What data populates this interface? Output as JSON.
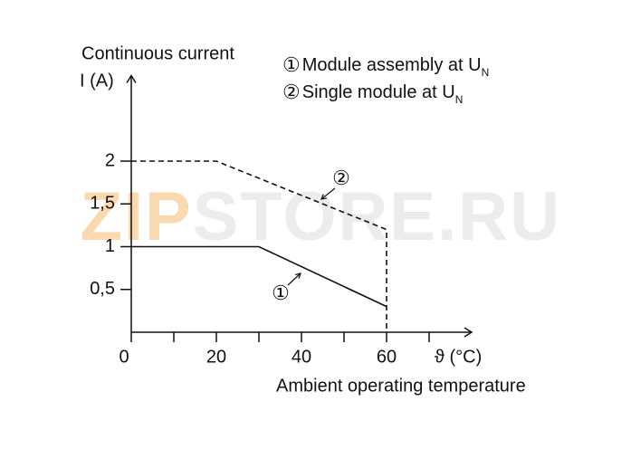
{
  "chart_data": {
    "type": "line",
    "ylabel": [
      "Continuous current",
      "I (A)"
    ],
    "xlabel_unit": "ϑ (°C)",
    "xlabel": "Ambient operating temperature",
    "watermark": [
      "ZIP",
      "STORE.RU"
    ],
    "xlim": [
      0,
      80
    ],
    "ylim": [
      0,
      3
    ],
    "xticks": [
      0,
      20,
      40,
      60
    ],
    "xminorticks": [
      10,
      30,
      50,
      70
    ],
    "yticks": [
      {
        "value": 0.5,
        "label": "0,5"
      },
      1,
      {
        "value": 1.5,
        "label": "1,5"
      },
      2
    ],
    "series": [
      {
        "name": "Module assembly at U",
        "subscript": "N",
        "marker": "①",
        "color": "#111111",
        "dashed": false,
        "x": [
          0,
          30,
          60
        ],
        "values": [
          1,
          1,
          0.3
        ]
      },
      {
        "name": "Single module at U",
        "subscript": "N",
        "marker": "②",
        "color": "#111111",
        "dashed": true,
        "x": [
          0,
          20,
          60,
          60
        ],
        "values": [
          2,
          2,
          1.2,
          0
        ]
      }
    ]
  }
}
